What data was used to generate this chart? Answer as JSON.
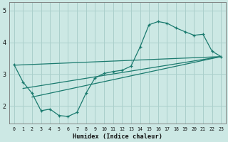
{
  "xlabel": "Humidex (Indice chaleur)",
  "bg_color": "#cce8e4",
  "line_color": "#1a7a6e",
  "grid_color": "#aacfcb",
  "xlim": [
    -0.5,
    23.5
  ],
  "ylim": [
    1.45,
    5.25
  ],
  "yticks": [
    2,
    3,
    4,
    5
  ],
  "xticks": [
    0,
    1,
    2,
    3,
    4,
    5,
    6,
    7,
    8,
    9,
    10,
    11,
    12,
    13,
    14,
    15,
    16,
    17,
    18,
    19,
    20,
    21,
    22,
    23
  ],
  "main_x": [
    0,
    1,
    2,
    3,
    4,
    5,
    6,
    7,
    8,
    9,
    10,
    11,
    12,
    13,
    14,
    15,
    16,
    17,
    18,
    19,
    20,
    21,
    22,
    23
  ],
  "main_y": [
    3.3,
    2.75,
    2.4,
    1.85,
    1.9,
    1.7,
    1.67,
    1.8,
    2.4,
    2.88,
    3.02,
    3.08,
    3.12,
    3.25,
    3.85,
    4.55,
    4.65,
    4.6,
    4.45,
    4.33,
    4.22,
    4.25,
    3.72,
    3.55
  ],
  "trend1_x": [
    0,
    23
  ],
  "trend1_y": [
    3.28,
    3.55
  ],
  "trend2_x": [
    1,
    23
  ],
  "trend2_y": [
    2.55,
    3.55
  ],
  "trend3_x": [
    2,
    23
  ],
  "trend3_y": [
    2.28,
    3.55
  ]
}
